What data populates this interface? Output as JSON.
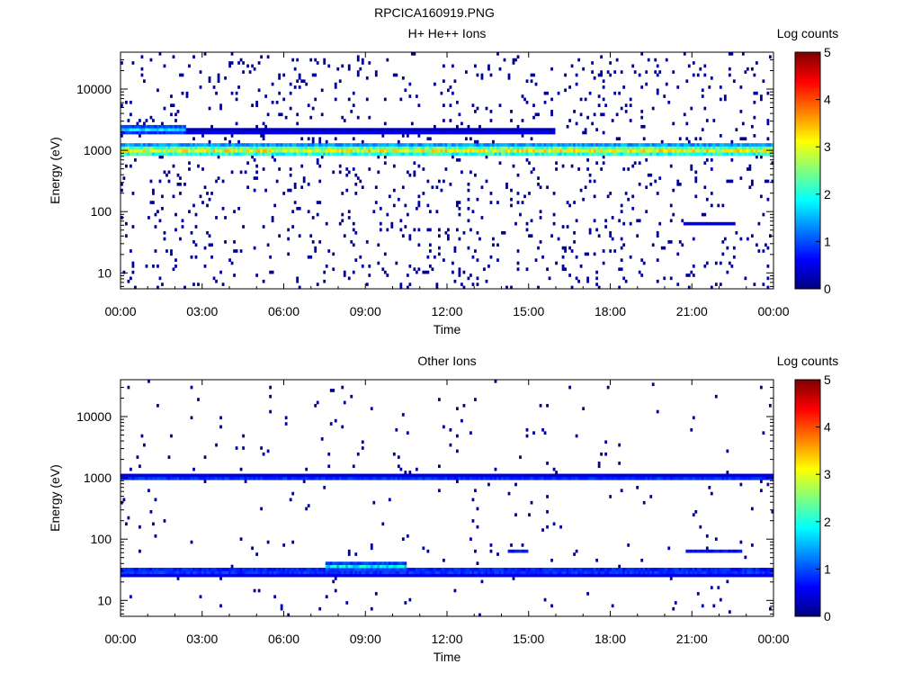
{
  "figure_title": "RPCICA160919.PNG",
  "chart_data": [
    {
      "type": "heatmap",
      "title": "H+ He++ Ions",
      "xlabel": "Time",
      "ylabel": "Energy (eV)",
      "x_ticks": [
        "00:00",
        "03:00",
        "06:00",
        "09:00",
        "12:00",
        "15:00",
        "18:00",
        "21:00",
        "00:00"
      ],
      "x_range_hours": [
        0,
        24
      ],
      "y_scale": "log",
      "y_ticks": [
        "10",
        "100",
        "1000",
        "10000"
      ],
      "y_range_eV": [
        5.5,
        40000
      ],
      "colorbar": {
        "label": "Log counts",
        "ticks": [
          "0",
          "1",
          "2",
          "3",
          "4",
          "5"
        ],
        "range": [
          0,
          5
        ]
      },
      "features": [
        {
          "desc": "main band",
          "t_start_h": 0,
          "t_end_h": 24,
          "e_center_eV": 1000,
          "log_counts": 3.1,
          "log_half_width": 0.1
        },
        {
          "desc": "upper band",
          "t_start_h": 0,
          "t_end_h": 2.4,
          "e_center_eV": 2200,
          "log_counts": 1.8,
          "log_half_width": 0.06
        },
        {
          "desc": "faint upper band",
          "t_start_h": 2.4,
          "t_end_h": 16,
          "e_center_eV": 2000,
          "log_counts": 0.6,
          "log_half_width": 0.04
        },
        {
          "desc": "low energy patch",
          "t_start_h": 20.7,
          "t_end_h": 22.6,
          "e_center_eV": 65,
          "log_counts": 0.6,
          "log_half_width": 0.03
        }
      ],
      "background_density": 0.05
    },
    {
      "type": "heatmap",
      "title": "Other Ions",
      "xlabel": "Time",
      "ylabel": "Energy (eV)",
      "x_ticks": [
        "00:00",
        "03:00",
        "06:00",
        "09:00",
        "12:00",
        "15:00",
        "18:00",
        "21:00",
        "00:00"
      ],
      "x_range_hours": [
        0,
        24
      ],
      "y_scale": "log",
      "y_ticks": [
        "10",
        "100",
        "1000",
        "10000"
      ],
      "y_range_eV": [
        5.5,
        40000
      ],
      "colorbar": {
        "label": "Log counts",
        "ticks": [
          "0",
          "1",
          "2",
          "3",
          "4",
          "5"
        ],
        "range": [
          0,
          5
        ]
      },
      "features": [
        {
          "desc": "band near 1 keV",
          "t_start_h": 0,
          "t_end_h": 24,
          "e_center_eV": 1000,
          "log_counts": 0.9,
          "log_half_width": 0.05
        },
        {
          "desc": "low energy band",
          "t_start_h": 0,
          "t_end_h": 24,
          "e_center_eV": 30,
          "log_counts": 1.0,
          "log_half_width": 0.08
        },
        {
          "desc": "enhanced low band",
          "t_start_h": 7.5,
          "t_end_h": 10.5,
          "e_center_eV": 36,
          "log_counts": 1.8,
          "log_half_width": 0.06
        },
        {
          "desc": "patch",
          "t_start_h": 14.2,
          "t_end_h": 15,
          "e_center_eV": 62,
          "log_counts": 1.0,
          "log_half_width": 0.03
        },
        {
          "desc": "patch",
          "t_start_h": 20.8,
          "t_end_h": 22.8,
          "e_center_eV": 66,
          "log_counts": 1.0,
          "log_half_width": 0.03
        }
      ],
      "background_density": 0.012
    }
  ]
}
